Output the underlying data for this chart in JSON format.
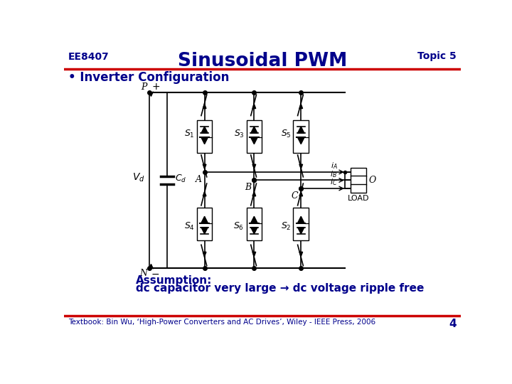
{
  "top_left_text": "EE8407",
  "top_right_text": "Topic 5",
  "title": "Sinusoidal PWM",
  "bullet": "• Inverter Configuration",
  "assumption_line1": "Assumption:",
  "assumption_line2": "dc capacitor very large → dc voltage ripple free",
  "footer_text": "Textbook: Bin Wu, ‘High-Power Converters and AC Drives’, Wiley - IEEE Press, 2006",
  "page_number": "4",
  "bg_color": "#ffffff",
  "text_color": "#00008B",
  "line_color": "#CC0000",
  "circuit_color": "#000000",
  "sw_top_labels": [
    "S_1",
    "S_3",
    "S_5"
  ],
  "sw_bot_labels": [
    "S_4",
    "S_6",
    "S_2"
  ],
  "phase_labels": [
    "A",
    "B",
    "C"
  ],
  "curr_labels": [
    "i_A",
    "i_B",
    "i_C"
  ]
}
